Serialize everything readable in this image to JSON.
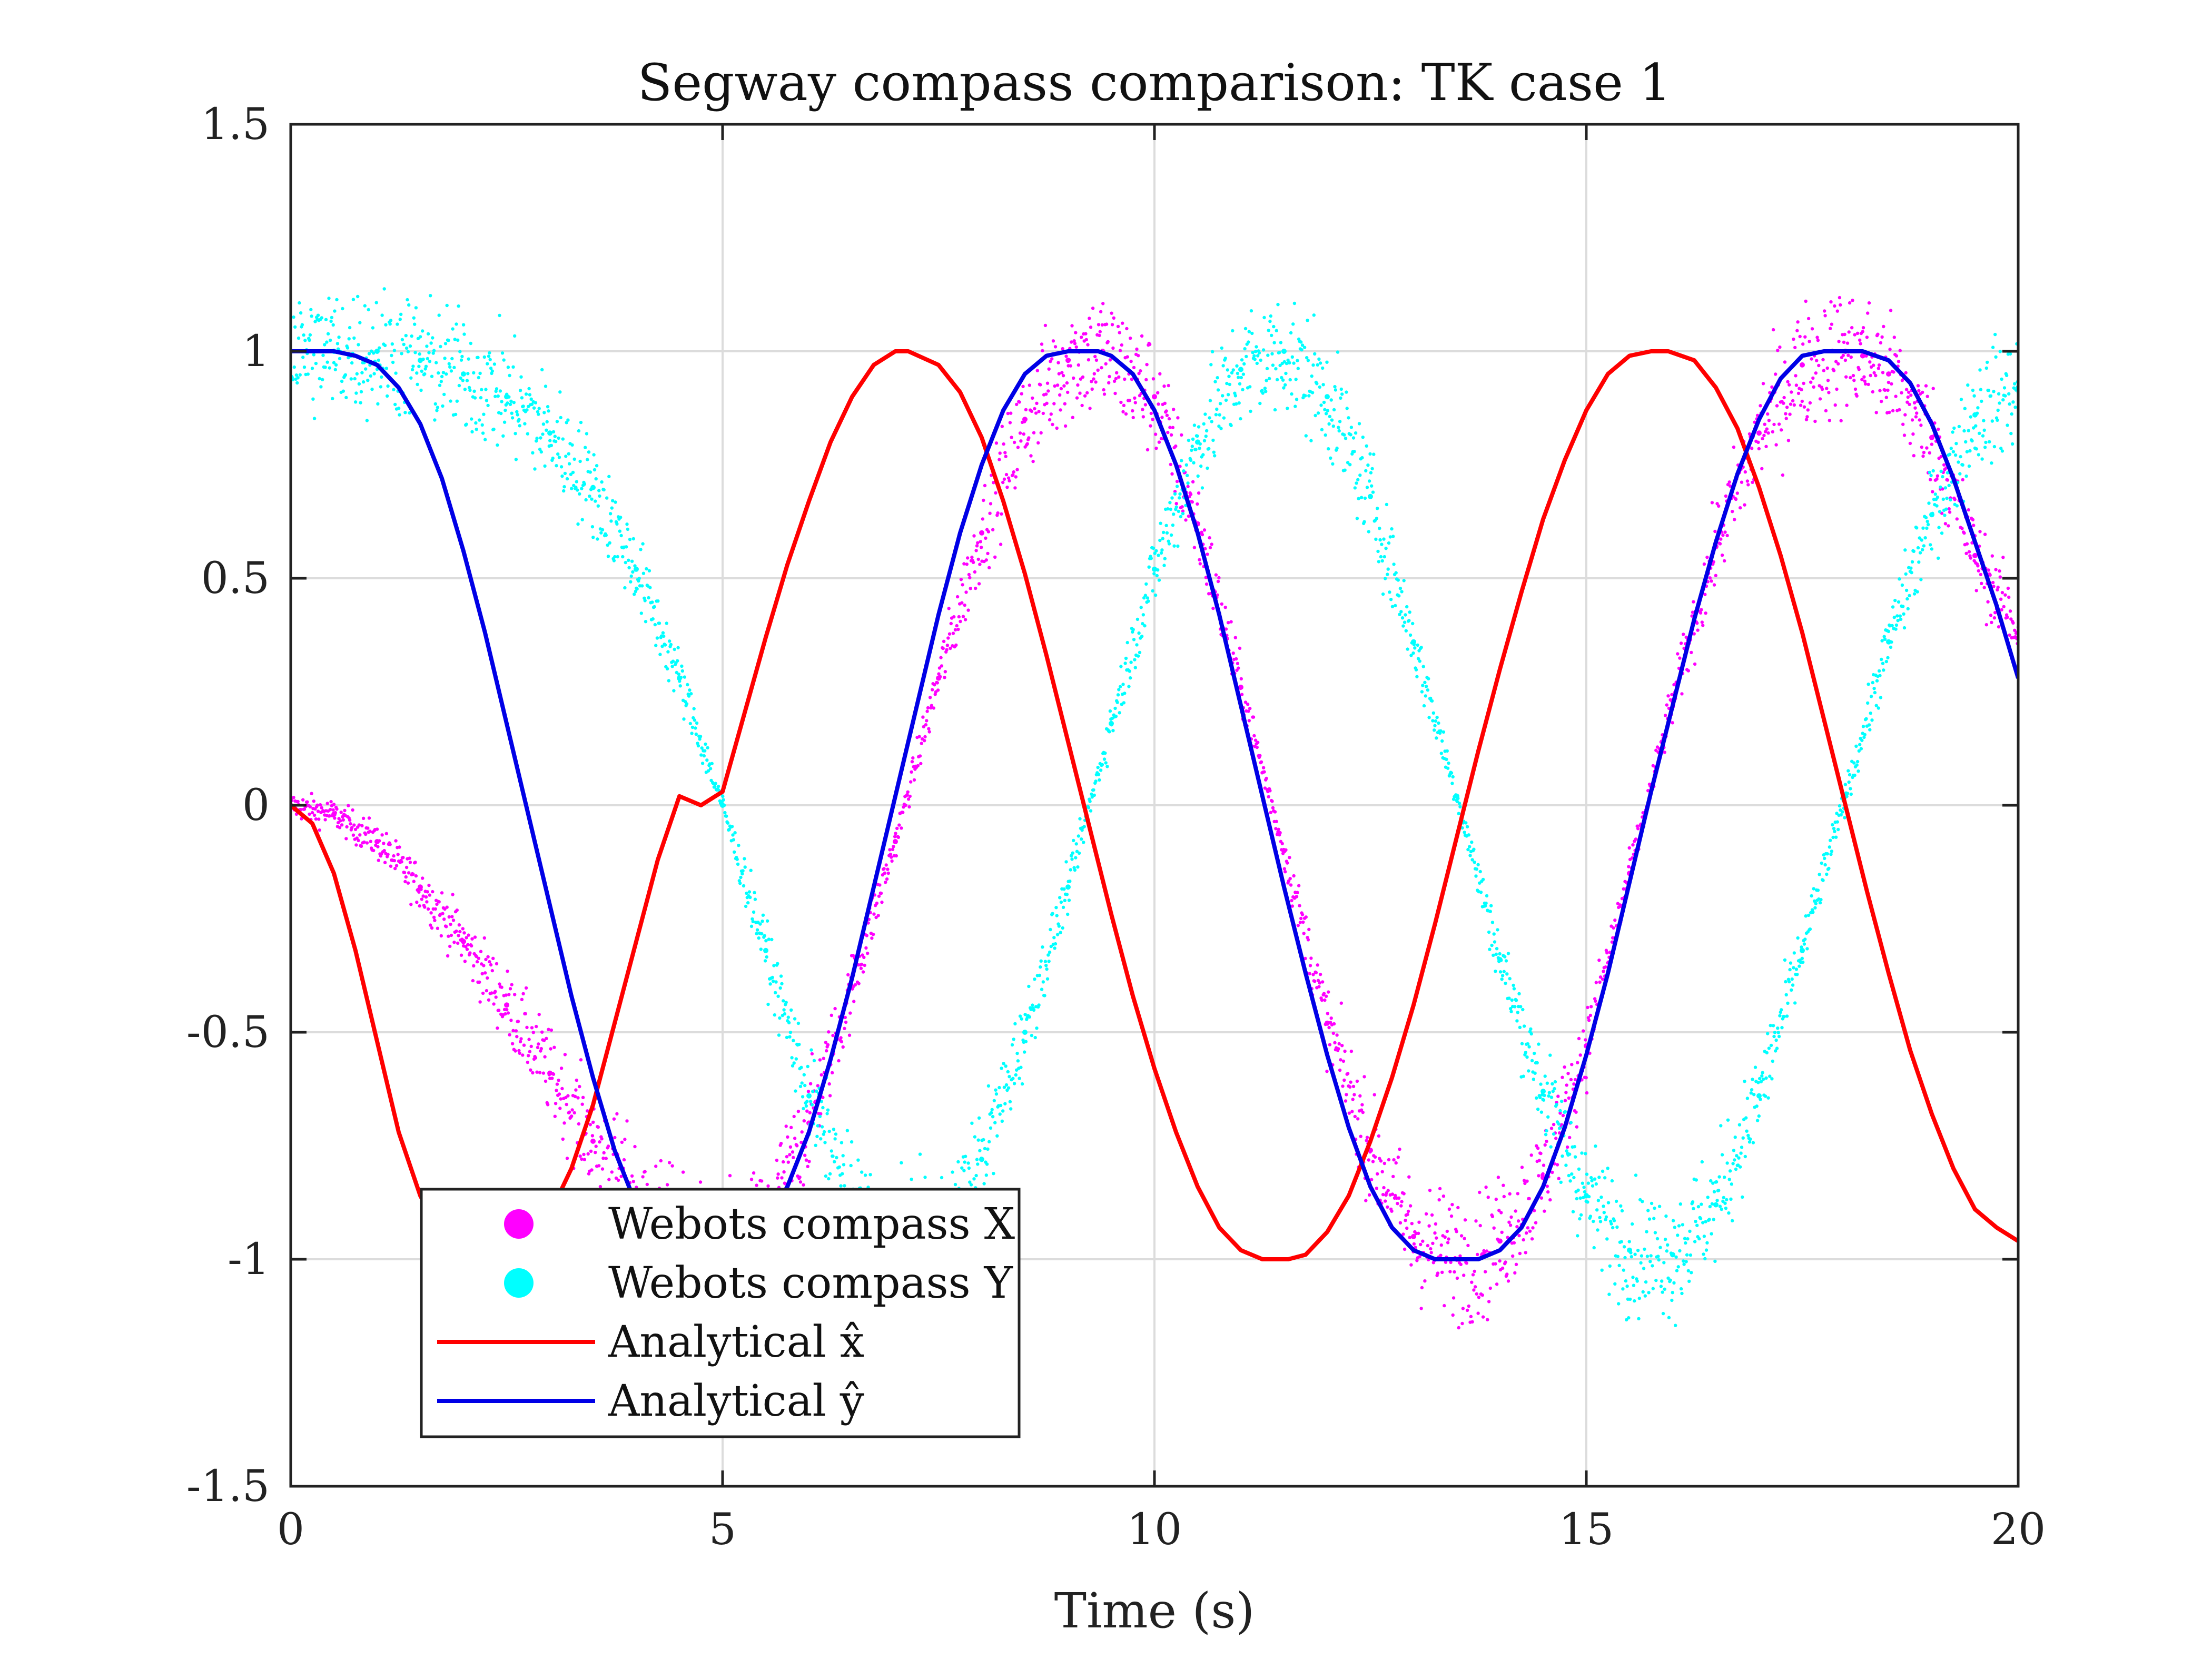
{
  "chart_data": {
    "type": "scatter",
    "title": "Segway compass comparison: TK case 1",
    "xlabel": "Time (s)",
    "ylabel": "",
    "xlim": [
      0,
      20
    ],
    "ylim": [
      -1.5,
      1.5
    ],
    "xticks": [
      0,
      5,
      10,
      15,
      20
    ],
    "xtick_labels": [
      "0",
      "5",
      "10",
      "15",
      "20"
    ],
    "yticks": [
      -1.5,
      -1,
      -0.5,
      0,
      0.5,
      1,
      1.5
    ],
    "ytick_labels": [
      "-1.5",
      "-1",
      "-0.5",
      "0",
      "0.5",
      "1",
      "1.5"
    ],
    "grid": true,
    "legend_position": "bottom-left",
    "series": [
      {
        "name": "Webots compass X",
        "kind": "scatter",
        "color": "#ff00ff",
        "x": [
          0,
          0.5,
          1,
          1.5,
          2,
          2.5,
          3,
          3.5,
          4,
          4.5,
          5,
          5.5,
          6,
          6.5,
          7,
          7.5,
          8,
          8.5,
          9,
          9.4,
          10,
          10.5,
          11,
          11.5,
          12,
          12.5,
          13,
          13.5,
          13.8,
          14,
          14.5,
          15,
          15.5,
          16,
          16.5,
          17,
          17.5,
          18,
          18.2,
          18.5,
          19,
          19.5,
          20
        ],
        "y": [
          0,
          -0.02,
          -0.08,
          -0.18,
          -0.3,
          -0.44,
          -0.59,
          -0.74,
          -0.86,
          -0.95,
          -1.0,
          -0.92,
          -0.7,
          -0.4,
          -0.08,
          0.28,
          0.6,
          0.85,
          0.98,
          1.0,
          0.9,
          0.62,
          0.26,
          -0.1,
          -0.48,
          -0.76,
          -0.95,
          -1.0,
          -0.99,
          -0.96,
          -0.82,
          -0.53,
          -0.15,
          0.23,
          0.57,
          0.82,
          0.97,
          1.0,
          0.99,
          0.95,
          0.81,
          0.55,
          0.38
        ]
      },
      {
        "name": "Webots compass Y",
        "kind": "scatter",
        "color": "#00ffff",
        "x": [
          0,
          0.5,
          1,
          1.5,
          2,
          2.5,
          3,
          3.5,
          4,
          4.5,
          5,
          5.5,
          6,
          6.5,
          7,
          7.5,
          8,
          8.5,
          9,
          9.5,
          10,
          10.5,
          11,
          11.5,
          12,
          12.5,
          13,
          13.5,
          14,
          14.5,
          15,
          15.5,
          16,
          16.5,
          17,
          17.5,
          18,
          18.5,
          19,
          19.5,
          20
        ],
        "y": [
          1.0,
          1.0,
          1.0,
          0.98,
          0.95,
          0.9,
          0.82,
          0.7,
          0.52,
          0.28,
          0.0,
          -0.32,
          -0.64,
          -0.88,
          -0.99,
          -0.96,
          -0.78,
          -0.5,
          -0.18,
          0.18,
          0.52,
          0.8,
          0.96,
          1.0,
          0.9,
          0.68,
          0.36,
          0.02,
          -0.34,
          -0.63,
          -0.86,
          -0.98,
          -0.99,
          -0.88,
          -0.64,
          -0.32,
          0.02,
          0.36,
          0.64,
          0.86,
          0.92
        ]
      },
      {
        "name": "Analytical x̂",
        "kind": "line",
        "color": "#ff0000",
        "x": [
          0,
          0.25,
          0.5,
          0.75,
          1,
          1.25,
          1.5,
          1.75,
          2,
          2.25,
          2.5,
          2.75,
          3,
          3.25,
          3.5,
          3.75,
          4,
          4.25,
          4.5,
          4.75,
          5,
          5.25,
          5.5,
          5.75,
          6,
          6.25,
          6.5,
          6.75,
          7,
          7.15,
          7.5,
          7.75,
          8,
          8.25,
          8.5,
          8.75,
          9,
          9.25,
          9.5,
          9.75,
          10,
          10.25,
          10.5,
          10.75,
          11,
          11.25,
          11.55,
          11.75,
          12,
          12.25,
          12.5,
          12.75,
          13,
          13.25,
          13.5,
          13.75,
          14,
          14.25,
          14.5,
          14.75,
          15,
          15.25,
          15.5,
          15.75,
          15.95,
          16.25,
          16.5,
          16.75,
          17,
          17.25,
          17.5,
          17.75,
          18,
          18.25,
          18.5,
          18.75,
          19,
          19.25,
          19.5,
          19.75,
          20
        ],
        "y": [
          0,
          -0.04,
          -0.15,
          -0.32,
          -0.52,
          -0.72,
          -0.86,
          -0.95,
          -0.99,
          -1.0,
          -0.99,
          -0.96,
          -0.9,
          -0.8,
          -0.66,
          -0.48,
          -0.3,
          -0.12,
          0.02,
          0.0,
          0.03,
          0.2,
          0.37,
          0.53,
          0.67,
          0.8,
          0.9,
          0.97,
          1.0,
          1.0,
          0.97,
          0.91,
          0.81,
          0.67,
          0.51,
          0.33,
          0.14,
          -0.05,
          -0.24,
          -0.42,
          -0.58,
          -0.72,
          -0.84,
          -0.93,
          -0.98,
          -1.0,
          -1.0,
          -0.99,
          -0.94,
          -0.86,
          -0.74,
          -0.6,
          -0.44,
          -0.26,
          -0.07,
          0.12,
          0.3,
          0.47,
          0.63,
          0.76,
          0.87,
          0.95,
          0.99,
          1.0,
          1.0,
          0.98,
          0.92,
          0.83,
          0.7,
          0.55,
          0.38,
          0.19,
          0.0,
          -0.19,
          -0.37,
          -0.54,
          -0.68,
          -0.8,
          -0.89,
          -0.93,
          -0.96
        ]
      },
      {
        "name": "Analytical ŷ",
        "kind": "line",
        "color": "#0000e6",
        "x": [
          0,
          0.5,
          0.75,
          1,
          1.25,
          1.5,
          1.75,
          2,
          2.25,
          2.5,
          2.75,
          3,
          3.25,
          3.5,
          3.75,
          4,
          4.25,
          4.5,
          4.75,
          5,
          5.25,
          5.5,
          5.75,
          6,
          6.25,
          6.5,
          6.75,
          7,
          7.25,
          7.5,
          7.75,
          8,
          8.25,
          8.5,
          8.75,
          9,
          9.35,
          9.5,
          9.75,
          10,
          10.25,
          10.5,
          10.75,
          11,
          11.25,
          11.5,
          11.75,
          12,
          12.25,
          12.5,
          12.75,
          13,
          13.25,
          13.5,
          13.75,
          14,
          14.25,
          14.5,
          14.75,
          15,
          15.25,
          15.5,
          15.75,
          16,
          16.25,
          16.5,
          16.75,
          17,
          17.25,
          17.5,
          17.75,
          18,
          18.2,
          18.5,
          18.75,
          19,
          19.25,
          19.5,
          19.75,
          20
        ],
        "y": [
          1.0,
          1.0,
          0.99,
          0.97,
          0.92,
          0.84,
          0.72,
          0.56,
          0.38,
          0.18,
          -0.02,
          -0.22,
          -0.42,
          -0.6,
          -0.76,
          -0.88,
          -0.97,
          -1.0,
          -0.99,
          -0.98,
          -0.96,
          -0.92,
          -0.84,
          -0.72,
          -0.56,
          -0.38,
          -0.18,
          0.02,
          0.22,
          0.42,
          0.6,
          0.75,
          0.87,
          0.95,
          0.99,
          1.0,
          1.0,
          0.99,
          0.95,
          0.87,
          0.75,
          0.6,
          0.42,
          0.22,
          0.02,
          -0.18,
          -0.37,
          -0.55,
          -0.71,
          -0.84,
          -0.93,
          -0.98,
          -1.0,
          -1.0,
          -1.0,
          -0.98,
          -0.93,
          -0.84,
          -0.71,
          -0.55,
          -0.37,
          -0.17,
          0.03,
          0.22,
          0.41,
          0.58,
          0.73,
          0.85,
          0.94,
          0.99,
          1.0,
          1.0,
          1.0,
          0.98,
          0.93,
          0.84,
          0.72,
          0.58,
          0.44,
          0.28
        ]
      }
    ],
    "legend": [
      {
        "label": "Webots compass X",
        "marker": "dot",
        "color": "#ff00ff"
      },
      {
        "label": "Webots compass Y",
        "marker": "dot",
        "color": "#00ffff"
      },
      {
        "label": "Analytical x̂",
        "marker": "line",
        "color": "#ff0000"
      },
      {
        "label": "Analytical ŷ",
        "marker": "line",
        "color": "#0000e6"
      }
    ]
  }
}
